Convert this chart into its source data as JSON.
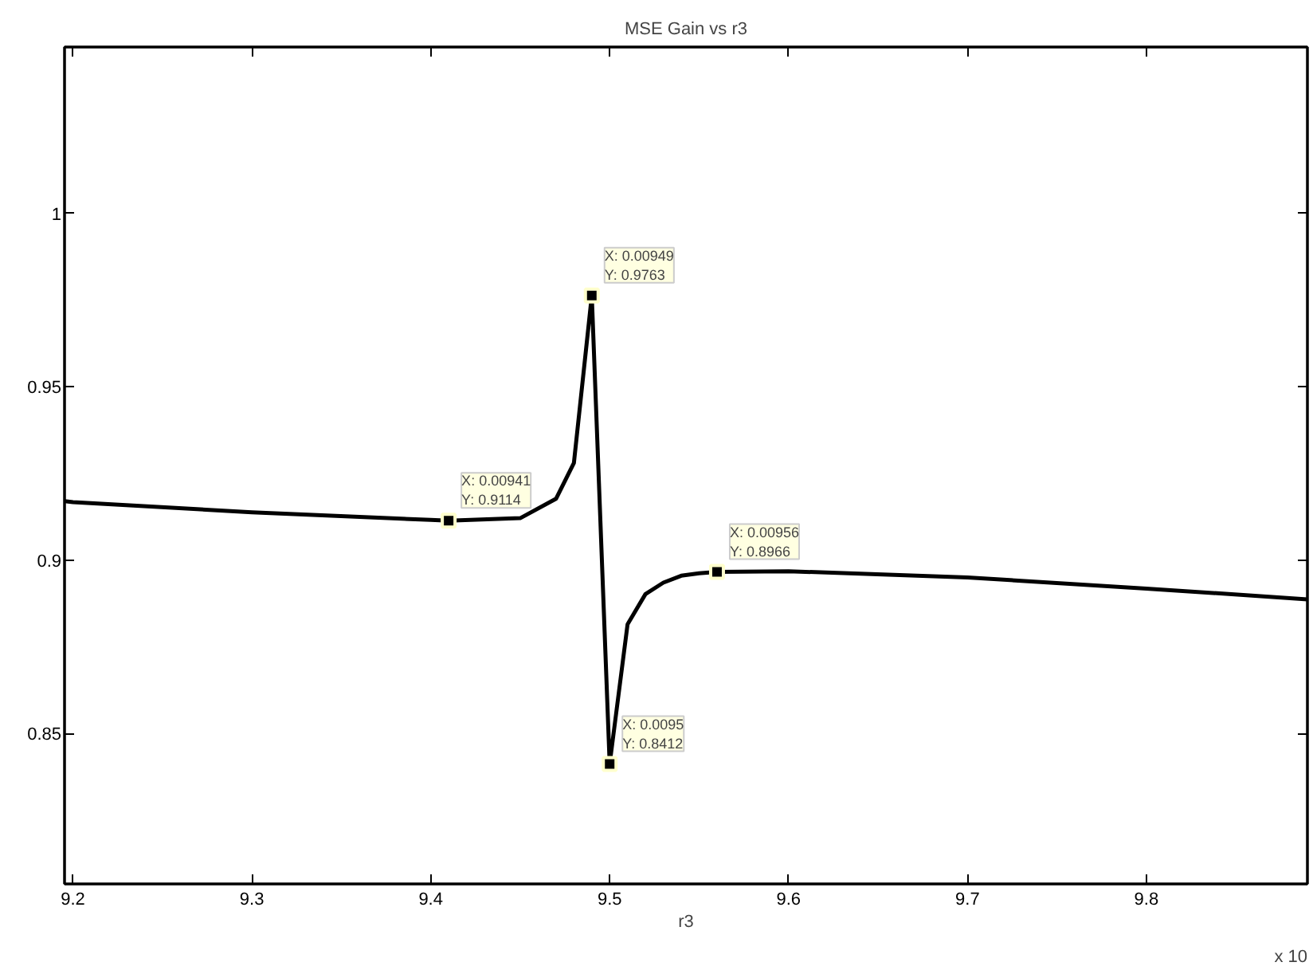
{
  "chart_data": {
    "type": "line",
    "title": "MSE Gain vs r3",
    "xlabel": "r3",
    "x": [
      9.1953,
      9.2,
      9.3,
      9.4,
      9.41,
      9.45,
      9.47,
      9.48,
      9.49,
      9.5,
      9.51,
      9.52,
      9.53,
      9.54,
      9.55,
      9.56,
      9.6,
      9.7,
      9.8,
      9.89
    ],
    "series": [
      {
        "color": "#000000",
        "values": [
          0.917,
          0.9167,
          0.9138,
          0.9116,
          0.9114,
          0.9121,
          0.9177,
          0.928,
          0.9763,
          0.8412,
          0.8815,
          0.8902,
          0.8935,
          0.8955,
          0.8962,
          0.8966,
          0.8968,
          0.895,
          0.8918,
          0.8887
        ]
      }
    ],
    "xlim": [
      9.1953,
      9.89
    ],
    "ylim": [
      0.8066,
      1.048
    ],
    "xticks": [
      9.2,
      9.3,
      9.4,
      9.5,
      9.6,
      9.7,
      9.8
    ],
    "yticks": [
      0.85,
      0.9,
      0.95,
      1
    ],
    "grid": false,
    "marker": "none",
    "line_style": "solid",
    "annotations": [
      {
        "text": "X: 0.00941\nY: 0.9114",
        "x": 9.41,
        "y": 0.9114
      },
      {
        "text": "X: 0.00949\nY: 0.9763",
        "x": 9.49,
        "y": 0.9763
      },
      {
        "text": "X: 0.0095\nY: 0.8412",
        "x": 9.5,
        "y": 0.8412
      },
      {
        "text": "X: 0.00956\nY: 0.8966",
        "x": 9.56,
        "y": 0.8966
      },
      "x 10"
    ]
  }
}
